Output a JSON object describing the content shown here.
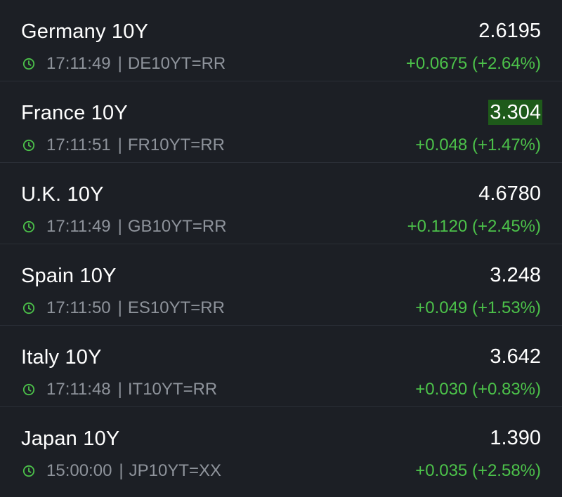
{
  "colors": {
    "background": "#1c1f25",
    "divider": "#2a2e36",
    "text_primary": "#ffffff",
    "text_secondary": "#8e939b",
    "positive": "#4cc24a",
    "flash_highlight": "#1e5a1a"
  },
  "rows": [
    {
      "name": "Germany 10Y",
      "price": "2.6195",
      "time": "17:11:49",
      "sep": "|",
      "ric": "DE10YT=RR",
      "change": "+0.0675 (+2.64%)",
      "icon": "clock-icon"
    },
    {
      "name": "France 10Y",
      "price": "3.304",
      "time": "17:11:51",
      "sep": "|",
      "ric": "FR10YT=RR",
      "change": "+0.048 (+1.47%)",
      "icon": "clock-icon",
      "highlighted": true
    },
    {
      "name": "U.K. 10Y",
      "price": "4.6780",
      "time": "17:11:49",
      "sep": "|",
      "ric": "GB10YT=RR",
      "change": "+0.1120 (+2.45%)",
      "icon": "clock-icon"
    },
    {
      "name": "Spain 10Y",
      "price": "3.248",
      "time": "17:11:50",
      "sep": "|",
      "ric": "ES10YT=RR",
      "change": "+0.049 (+1.53%)",
      "icon": "clock-icon"
    },
    {
      "name": "Italy 10Y",
      "price": "3.642",
      "time": "17:11:48",
      "sep": "|",
      "ric": "IT10YT=RR",
      "change": "+0.030 (+0.83%)",
      "icon": "clock-icon"
    },
    {
      "name": "Japan 10Y",
      "price": "1.390",
      "time": "15:00:00",
      "sep": "|",
      "ric": "JP10YT=XX",
      "change": "+0.035 (+2.58%)",
      "icon": "clock-icon"
    }
  ]
}
